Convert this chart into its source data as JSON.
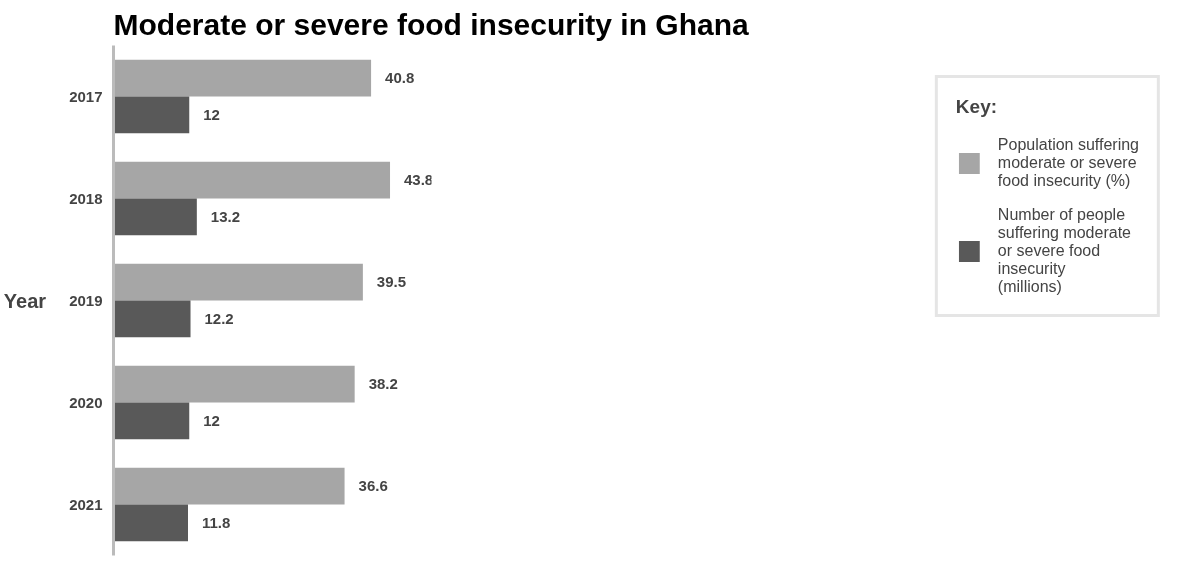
{
  "chart_data": {
    "type": "bar",
    "orientation": "horizontal",
    "title": "Moderate or severe food insecurity in Ghana",
    "ylabel": "Year",
    "legend_title": "Key:",
    "categories": [
      "2017",
      "2018",
      "2019",
      "2020",
      "2021"
    ],
    "series": [
      {
        "name": "Population suffering moderate or severe food insecurity (%)",
        "color": "#a6a6a6",
        "values": [
          40.8,
          43.8,
          39.5,
          38.2,
          36.6
        ]
      },
      {
        "name": "Number of people suffering moderate or severe food insecurity (millions)",
        "color": "#595959",
        "values": [
          12,
          13.2,
          12.2,
          12,
          11.8
        ]
      }
    ],
    "data_labels": true,
    "grid": false,
    "legend": "right"
  }
}
